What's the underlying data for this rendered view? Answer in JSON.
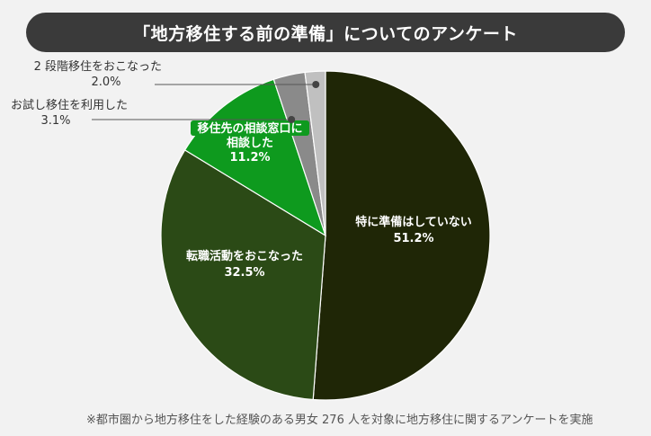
{
  "title": "「地方移住する前の準備」についてのアンケート",
  "footnote": "※都市圏から地方移住をした経験のある男女 276 人を対象に地方移住に関するアンケートを実施",
  "colors": {
    "background": "#f2f2f2",
    "title_bar": "#3a3a3a",
    "leader_line": "#555555"
  },
  "chart_data": {
    "type": "pie",
    "title": "「地方移住する前の準備」についてのアンケート",
    "start": "12 o'clock",
    "direction": "clockwise",
    "slices": [
      {
        "label": "特に準備はしていない",
        "label_lines": [
          "特に準備はしていない",
          "51.2%"
        ],
        "value": 51.2,
        "color": "#1f2606",
        "text_color": "#ffffff",
        "label_placement": "inside"
      },
      {
        "label": "転職活動をおこなった",
        "label_lines": [
          "転職活動をおこなった",
          "32.5%"
        ],
        "value": 32.5,
        "color": "#2b4a16",
        "text_color": "#ffffff",
        "label_placement": "inside"
      },
      {
        "label": "移住先の相談窓口に相談した",
        "label_lines": [
          "移住先の相談窓口に",
          "相談した",
          "11.2%"
        ],
        "value": 11.2,
        "color": "#0e9a1e",
        "text_color": "#ffffff",
        "label_placement": "inside"
      },
      {
        "label": "お試し移住を利用した",
        "label_lines": [
          "お試し移住を利用した",
          "3.1%"
        ],
        "value": 3.1,
        "color": "#8a8a8a",
        "text_color": "#333333",
        "label_placement": "outside"
      },
      {
        "label": "2 段階移住をおこなった",
        "label_lines": [
          "2 段階移住をおこなった",
          "2.0%"
        ],
        "value": 2.0,
        "color": "#c0c0c0",
        "text_color": "#333333",
        "label_placement": "outside"
      }
    ]
  }
}
